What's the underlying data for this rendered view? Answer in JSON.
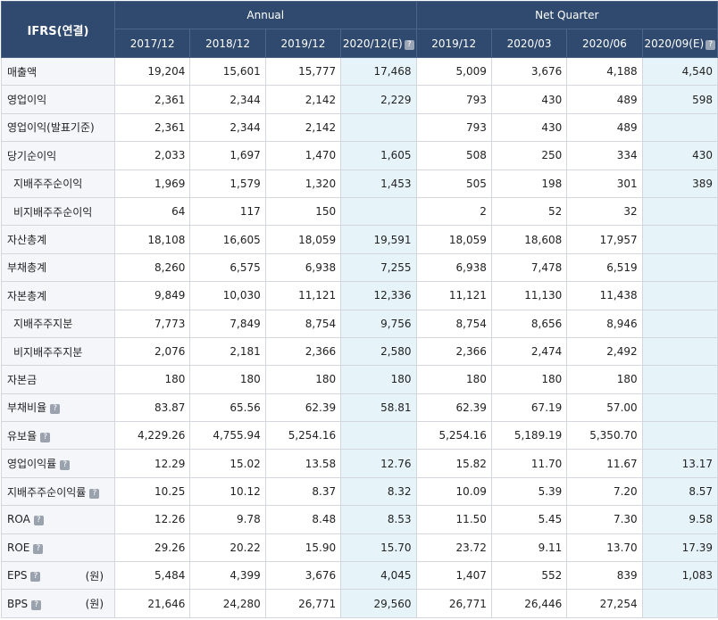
{
  "header": {
    "corner": "IFRS(연결)",
    "group_annual": "Annual",
    "group_quarter": "Net Quarter",
    "columns": [
      "2017/12",
      "2018/12",
      "2019/12",
      "2020/12(E)",
      "2019/12",
      "2020/03",
      "2020/06",
      "2020/09(E)"
    ],
    "estimate_columns": [
      3,
      7
    ],
    "help_columns": [
      3,
      7
    ]
  },
  "help_icon": "question-mark",
  "colors": {
    "header_bg": "#2f4a6e",
    "label_bg": "#f4f6f9",
    "estimate_bg": "#e6f4fa"
  },
  "rows": [
    {
      "label": "매출액",
      "unit": "",
      "help": false,
      "sub": false,
      "values": [
        "19,204",
        "15,601",
        "15,777",
        "17,468",
        "5,009",
        "3,676",
        "4,188",
        "4,540"
      ]
    },
    {
      "label": "영업이익",
      "unit": "",
      "help": false,
      "sub": false,
      "values": [
        "2,361",
        "2,344",
        "2,142",
        "2,229",
        "793",
        "430",
        "489",
        "598"
      ]
    },
    {
      "label": "영업이익(발표기준)",
      "unit": "",
      "help": false,
      "sub": false,
      "values": [
        "2,361",
        "2,344",
        "2,142",
        "",
        "793",
        "430",
        "489",
        ""
      ]
    },
    {
      "label": "당기순이익",
      "unit": "",
      "help": false,
      "sub": false,
      "values": [
        "2,033",
        "1,697",
        "1,470",
        "1,605",
        "508",
        "250",
        "334",
        "430"
      ]
    },
    {
      "label": "지배주주순이익",
      "unit": "",
      "help": false,
      "sub": true,
      "values": [
        "1,969",
        "1,579",
        "1,320",
        "1,453",
        "505",
        "198",
        "301",
        "389"
      ]
    },
    {
      "label": "비지배주주순이익",
      "unit": "",
      "help": false,
      "sub": true,
      "values": [
        "64",
        "117",
        "150",
        "",
        "2",
        "52",
        "32",
        ""
      ]
    },
    {
      "label": "자산총계",
      "unit": "",
      "help": false,
      "sub": false,
      "values": [
        "18,108",
        "16,605",
        "18,059",
        "19,591",
        "18,059",
        "18,608",
        "17,957",
        ""
      ]
    },
    {
      "label": "부채총계",
      "unit": "",
      "help": false,
      "sub": false,
      "values": [
        "8,260",
        "6,575",
        "6,938",
        "7,255",
        "6,938",
        "7,478",
        "6,519",
        ""
      ]
    },
    {
      "label": "자본총계",
      "unit": "",
      "help": false,
      "sub": false,
      "values": [
        "9,849",
        "10,030",
        "11,121",
        "12,336",
        "11,121",
        "11,130",
        "11,438",
        ""
      ]
    },
    {
      "label": "지배주주지분",
      "unit": "",
      "help": false,
      "sub": true,
      "values": [
        "7,773",
        "7,849",
        "8,754",
        "9,756",
        "8,754",
        "8,656",
        "8,946",
        ""
      ]
    },
    {
      "label": "비지배주주지분",
      "unit": "",
      "help": false,
      "sub": true,
      "values": [
        "2,076",
        "2,181",
        "2,366",
        "2,580",
        "2,366",
        "2,474",
        "2,492",
        ""
      ]
    },
    {
      "label": "자본금",
      "unit": "",
      "help": false,
      "sub": false,
      "values": [
        "180",
        "180",
        "180",
        "180",
        "180",
        "180",
        "180",
        ""
      ]
    },
    {
      "label": "부채비율",
      "unit": "",
      "help": true,
      "sub": false,
      "values": [
        "83.87",
        "65.56",
        "62.39",
        "58.81",
        "62.39",
        "67.19",
        "57.00",
        ""
      ]
    },
    {
      "label": "유보율",
      "unit": "",
      "help": true,
      "sub": false,
      "values": [
        "4,229.26",
        "4,755.94",
        "5,254.16",
        "",
        "5,254.16",
        "5,189.19",
        "5,350.70",
        ""
      ]
    },
    {
      "label": "영업이익률",
      "unit": "",
      "help": true,
      "sub": false,
      "values": [
        "12.29",
        "15.02",
        "13.58",
        "12.76",
        "15.82",
        "11.70",
        "11.67",
        "13.17"
      ]
    },
    {
      "label": "지배주주순이익률",
      "unit": "",
      "help": true,
      "sub": false,
      "values": [
        "10.25",
        "10.12",
        "8.37",
        "8.32",
        "10.09",
        "5.39",
        "7.20",
        "8.57"
      ]
    },
    {
      "label": "ROA",
      "unit": "",
      "help": true,
      "sub": false,
      "values": [
        "12.26",
        "9.78",
        "8.48",
        "8.53",
        "11.50",
        "5.45",
        "7.30",
        "9.58"
      ]
    },
    {
      "label": "ROE",
      "unit": "",
      "help": true,
      "sub": false,
      "values": [
        "29.26",
        "20.22",
        "15.90",
        "15.70",
        "23.72",
        "9.11",
        "13.70",
        "17.39"
      ]
    },
    {
      "label": "EPS",
      "unit": "(원)",
      "help": true,
      "sub": false,
      "values": [
        "5,484",
        "4,399",
        "3,676",
        "4,045",
        "1,407",
        "552",
        "839",
        "1,083"
      ]
    },
    {
      "label": "BPS",
      "unit": "(원)",
      "help": true,
      "sub": false,
      "values": [
        "21,646",
        "24,280",
        "26,771",
        "29,560",
        "26,771",
        "26,446",
        "27,254",
        ""
      ]
    }
  ]
}
